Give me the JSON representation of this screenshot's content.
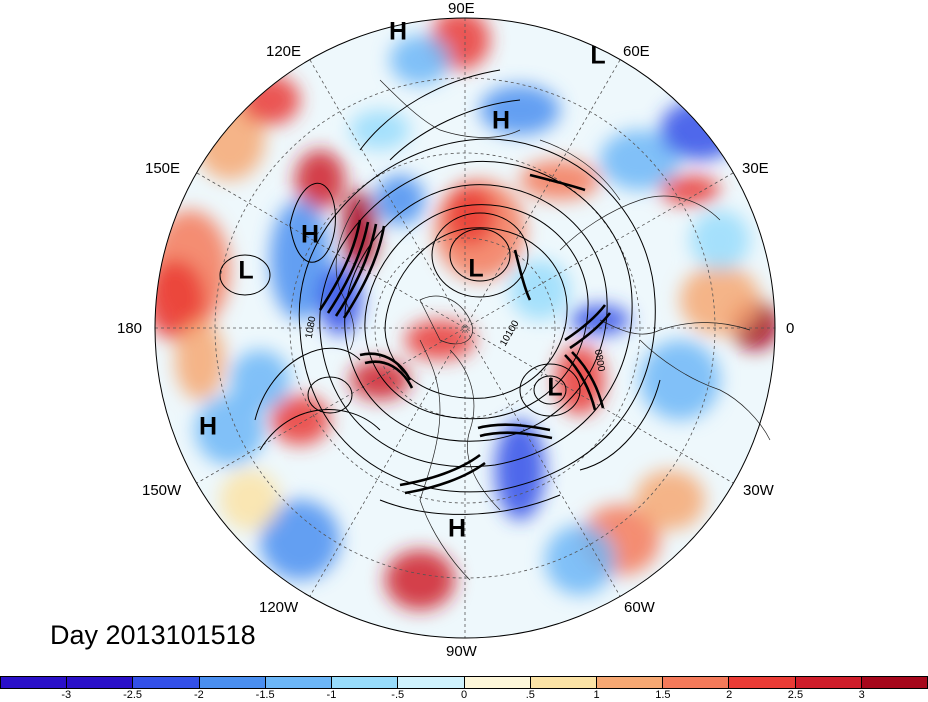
{
  "title": "Day 2013101518",
  "longitude_labels": [
    {
      "id": "90e",
      "text": "90E"
    },
    {
      "id": "120e",
      "text": "120E"
    },
    {
      "id": "60e",
      "text": "60E"
    },
    {
      "id": "150e",
      "text": "150E"
    },
    {
      "id": "30e",
      "text": "30E"
    },
    {
      "id": "180",
      "text": "180"
    },
    {
      "id": "0",
      "text": "0"
    },
    {
      "id": "150w",
      "text": "150W"
    },
    {
      "id": "30w",
      "text": "30W"
    },
    {
      "id": "120w",
      "text": "120W"
    },
    {
      "id": "60w",
      "text": "60W"
    },
    {
      "id": "90w",
      "text": "90W"
    }
  ],
  "pressure_centers": [
    {
      "text": "H"
    },
    {
      "text": "L"
    },
    {
      "text": "H"
    },
    {
      "text": "H"
    },
    {
      "text": "L"
    },
    {
      "text": "L"
    },
    {
      "text": "L"
    },
    {
      "text": "H"
    },
    {
      "text": "H"
    }
  ],
  "contour_labels": [
    "1080",
    "10100",
    "0800"
  ],
  "colorbar": {
    "colors": [
      "#2a10c8",
      "#3350e8",
      "#4a8ff0",
      "#6cb6f7",
      "#98dcfb",
      "#cff2fd",
      "#fcf6d9",
      "#fbe3a6",
      "#f6a873",
      "#f47a5a",
      "#ea3b35",
      "#cf1d2a",
      "#a6071b"
    ],
    "labels": [
      "-3",
      "-2.5",
      "-2",
      "-1.5",
      "-1",
      "-.5",
      "0",
      ".5",
      "1",
      "1.5",
      "2",
      "2.5",
      "3"
    ]
  }
}
